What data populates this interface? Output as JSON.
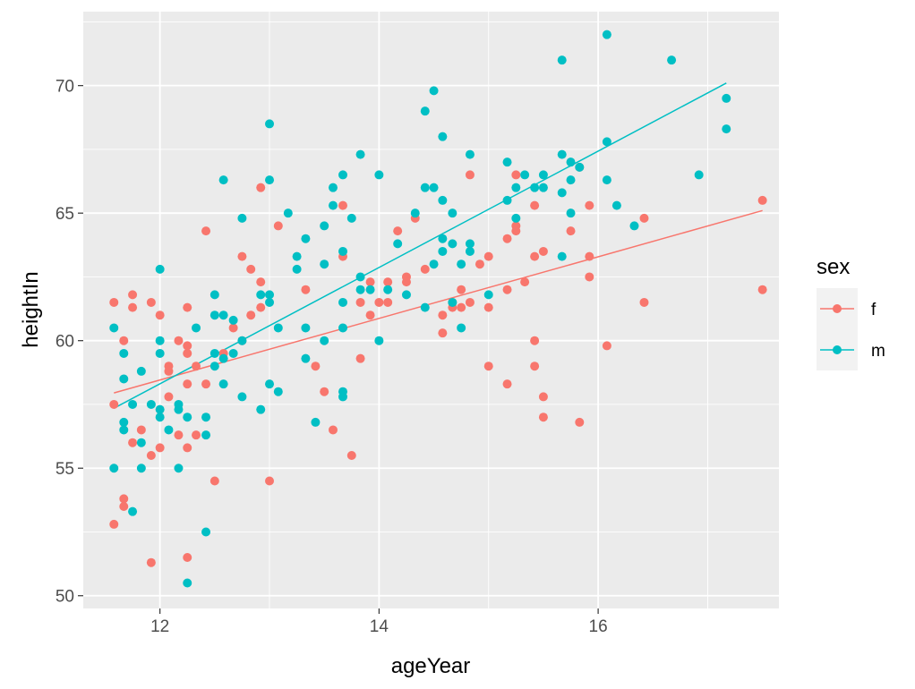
{
  "chart_data": {
    "type": "scatter",
    "xlabel": "ageYear",
    "ylabel": "heightIn",
    "xlim": [
      11.3,
      17.65
    ],
    "ylim": [
      49.5,
      72.9
    ],
    "x_ticks": [
      12,
      14,
      16
    ],
    "x_minor_ticks": [
      11,
      13,
      15,
      17
    ],
    "y_ticks": [
      50,
      55,
      60,
      65,
      70
    ],
    "y_minor_ticks": [
      52.5,
      57.5,
      62.5,
      67.5,
      72.5
    ],
    "grid": true,
    "legend": {
      "title": "sex",
      "position": "right",
      "entries": [
        "f",
        "m"
      ]
    },
    "colors": {
      "f": "#F8766D",
      "m": "#00BFC4",
      "panel": "#EBEBEB",
      "grid": "#FFFFFF"
    },
    "series": [
      {
        "name": "f",
        "points": [
          [
            11.58,
            61.5
          ],
          [
            11.58,
            57.5
          ],
          [
            11.58,
            52.8
          ],
          [
            11.67,
            60.0
          ],
          [
            11.67,
            53.8
          ],
          [
            11.67,
            53.5
          ],
          [
            11.75,
            61.8
          ],
          [
            11.75,
            61.3
          ],
          [
            11.75,
            56.0
          ],
          [
            11.83,
            56.5
          ],
          [
            11.92,
            61.5
          ],
          [
            11.92,
            55.5
          ],
          [
            11.92,
            51.3
          ],
          [
            12.0,
            61.0
          ],
          [
            12.0,
            55.8
          ],
          [
            12.08,
            59.0
          ],
          [
            12.08,
            58.8
          ],
          [
            12.08,
            57.8
          ],
          [
            12.17,
            60.0
          ],
          [
            12.17,
            56.3
          ],
          [
            12.25,
            61.3
          ],
          [
            12.25,
            59.8
          ],
          [
            12.25,
            59.5
          ],
          [
            12.25,
            58.3
          ],
          [
            12.25,
            55.8
          ],
          [
            12.25,
            51.5
          ],
          [
            12.33,
            59.0
          ],
          [
            12.33,
            56.3
          ],
          [
            12.42,
            64.3
          ],
          [
            12.42,
            58.3
          ],
          [
            12.5,
            54.5
          ],
          [
            12.58,
            59.5
          ],
          [
            12.67,
            60.5
          ],
          [
            12.75,
            63.3
          ],
          [
            12.75,
            60.0
          ],
          [
            12.83,
            62.8
          ],
          [
            12.83,
            61.0
          ],
          [
            12.92,
            66.0
          ],
          [
            12.92,
            62.3
          ],
          [
            12.92,
            61.3
          ],
          [
            13.0,
            54.5
          ],
          [
            13.08,
            64.5
          ],
          [
            13.33,
            62.0
          ],
          [
            13.42,
            59.0
          ],
          [
            13.5,
            58.0
          ],
          [
            13.58,
            56.5
          ],
          [
            13.67,
            65.3
          ],
          [
            13.67,
            63.3
          ],
          [
            13.75,
            55.5
          ],
          [
            13.83,
            61.5
          ],
          [
            13.83,
            59.3
          ],
          [
            13.92,
            62.3
          ],
          [
            13.92,
            61.0
          ],
          [
            14.0,
            61.5
          ],
          [
            14.08,
            62.3
          ],
          [
            14.08,
            61.5
          ],
          [
            14.17,
            64.3
          ],
          [
            14.25,
            62.5
          ],
          [
            14.25,
            62.3
          ],
          [
            14.33,
            64.8
          ],
          [
            14.42,
            62.8
          ],
          [
            14.58,
            61.0
          ],
          [
            14.58,
            60.3
          ],
          [
            14.67,
            61.5
          ],
          [
            14.67,
            61.3
          ],
          [
            14.75,
            62.0
          ],
          [
            14.75,
            61.3
          ],
          [
            14.83,
            61.5
          ],
          [
            14.83,
            66.5
          ],
          [
            14.92,
            63.0
          ],
          [
            15.0,
            63.3
          ],
          [
            15.0,
            61.3
          ],
          [
            15.0,
            59.0
          ],
          [
            15.17,
            64.0
          ],
          [
            15.17,
            62.0
          ],
          [
            15.17,
            58.3
          ],
          [
            15.25,
            66.5
          ],
          [
            15.25,
            64.5
          ],
          [
            15.25,
            64.3
          ],
          [
            15.33,
            62.3
          ],
          [
            15.42,
            65.3
          ],
          [
            15.42,
            63.3
          ],
          [
            15.42,
            60.0
          ],
          [
            15.42,
            59.0
          ],
          [
            15.5,
            63.5
          ],
          [
            15.5,
            57.8
          ],
          [
            15.5,
            57.0
          ],
          [
            15.75,
            64.3
          ],
          [
            15.83,
            66.8
          ],
          [
            15.83,
            56.8
          ],
          [
            15.92,
            65.3
          ],
          [
            15.92,
            63.3
          ],
          [
            15.92,
            62.5
          ],
          [
            16.08,
            59.8
          ],
          [
            16.42,
            64.8
          ],
          [
            16.42,
            61.5
          ],
          [
            17.5,
            65.5
          ],
          [
            17.5,
            62.0
          ]
        ],
        "fit_line": [
          [
            11.58,
            57.95
          ],
          [
            17.5,
            65.1
          ]
        ]
      },
      {
        "name": "m",
        "points": [
          [
            11.58,
            60.5
          ],
          [
            11.58,
            55.0
          ],
          [
            11.67,
            59.5
          ],
          [
            11.67,
            58.5
          ],
          [
            11.67,
            56.8
          ],
          [
            11.67,
            56.5
          ],
          [
            11.75,
            57.5
          ],
          [
            11.75,
            53.3
          ],
          [
            11.83,
            58.8
          ],
          [
            11.83,
            56.0
          ],
          [
            11.83,
            55.0
          ],
          [
            11.92,
            57.5
          ],
          [
            12.0,
            62.8
          ],
          [
            12.0,
            60.0
          ],
          [
            12.0,
            59.5
          ],
          [
            12.0,
            57.3
          ],
          [
            12.0,
            57.0
          ],
          [
            12.08,
            56.5
          ],
          [
            12.17,
            57.5
          ],
          [
            12.17,
            57.3
          ],
          [
            12.17,
            55.0
          ],
          [
            12.25,
            57.0
          ],
          [
            12.25,
            50.5
          ],
          [
            12.33,
            60.5
          ],
          [
            12.42,
            57.0
          ],
          [
            12.42,
            56.3
          ],
          [
            12.42,
            52.5
          ],
          [
            12.5,
            61.8
          ],
          [
            12.5,
            61.0
          ],
          [
            12.5,
            59.5
          ],
          [
            12.5,
            59.0
          ],
          [
            12.58,
            66.3
          ],
          [
            12.58,
            61.0
          ],
          [
            12.58,
            59.3
          ],
          [
            12.58,
            58.3
          ],
          [
            12.67,
            60.8
          ],
          [
            12.67,
            59.5
          ],
          [
            12.75,
            64.8
          ],
          [
            12.75,
            60.0
          ],
          [
            12.75,
            57.8
          ],
          [
            12.92,
            61.8
          ],
          [
            12.92,
            57.3
          ],
          [
            13.0,
            68.5
          ],
          [
            13.0,
            66.3
          ],
          [
            13.0,
            61.8
          ],
          [
            13.0,
            61.5
          ],
          [
            13.0,
            58.3
          ],
          [
            13.08,
            60.5
          ],
          [
            13.08,
            58.0
          ],
          [
            13.17,
            65.0
          ],
          [
            13.25,
            63.3
          ],
          [
            13.25,
            62.8
          ],
          [
            13.33,
            64.0
          ],
          [
            13.33,
            60.5
          ],
          [
            13.33,
            59.3
          ],
          [
            13.42,
            56.8
          ],
          [
            13.5,
            64.5
          ],
          [
            13.5,
            63.0
          ],
          [
            13.5,
            60.0
          ],
          [
            13.58,
            66.0
          ],
          [
            13.58,
            65.3
          ],
          [
            13.67,
            66.5
          ],
          [
            13.67,
            63.5
          ],
          [
            13.67,
            61.5
          ],
          [
            13.67,
            60.5
          ],
          [
            13.67,
            58.0
          ],
          [
            13.67,
            57.8
          ],
          [
            13.75,
            64.8
          ],
          [
            13.83,
            67.3
          ],
          [
            13.83,
            62.5
          ],
          [
            13.83,
            62.0
          ],
          [
            13.92,
            62.0
          ],
          [
            14.0,
            66.5
          ],
          [
            14.0,
            60.0
          ],
          [
            14.08,
            62.0
          ],
          [
            14.17,
            63.8
          ],
          [
            14.25,
            61.8
          ],
          [
            14.33,
            65.0
          ],
          [
            14.42,
            69.0
          ],
          [
            14.42,
            66.0
          ],
          [
            14.42,
            61.3
          ],
          [
            14.5,
            69.8
          ],
          [
            14.5,
            66.0
          ],
          [
            14.5,
            63.0
          ],
          [
            14.58,
            68.0
          ],
          [
            14.58,
            65.5
          ],
          [
            14.58,
            64.0
          ],
          [
            14.58,
            63.5
          ],
          [
            14.67,
            65.0
          ],
          [
            14.67,
            63.8
          ],
          [
            14.67,
            61.5
          ],
          [
            14.75,
            63.0
          ],
          [
            14.75,
            60.5
          ],
          [
            14.83,
            67.3
          ],
          [
            14.83,
            63.8
          ],
          [
            14.83,
            63.5
          ],
          [
            15.0,
            61.8
          ],
          [
            15.17,
            67.0
          ],
          [
            15.17,
            65.5
          ],
          [
            15.25,
            66.0
          ],
          [
            15.25,
            64.8
          ],
          [
            15.33,
            66.5
          ],
          [
            15.42,
            66.0
          ],
          [
            15.5,
            66.5
          ],
          [
            15.5,
            66.0
          ],
          [
            15.67,
            71.0
          ],
          [
            15.67,
            67.3
          ],
          [
            15.67,
            65.8
          ],
          [
            15.67,
            63.3
          ],
          [
            15.75,
            67.0
          ],
          [
            15.75,
            66.3
          ],
          [
            15.75,
            65.0
          ],
          [
            15.83,
            66.8
          ],
          [
            16.08,
            72.0
          ],
          [
            16.08,
            67.8
          ],
          [
            16.08,
            66.3
          ],
          [
            16.17,
            65.3
          ],
          [
            16.33,
            64.5
          ],
          [
            16.67,
            71.0
          ],
          [
            16.92,
            66.5
          ],
          [
            17.17,
            69.5
          ],
          [
            17.17,
            68.3
          ]
        ],
        "fit_line": [
          [
            11.58,
            57.35
          ],
          [
            17.17,
            70.1
          ]
        ]
      }
    ]
  }
}
